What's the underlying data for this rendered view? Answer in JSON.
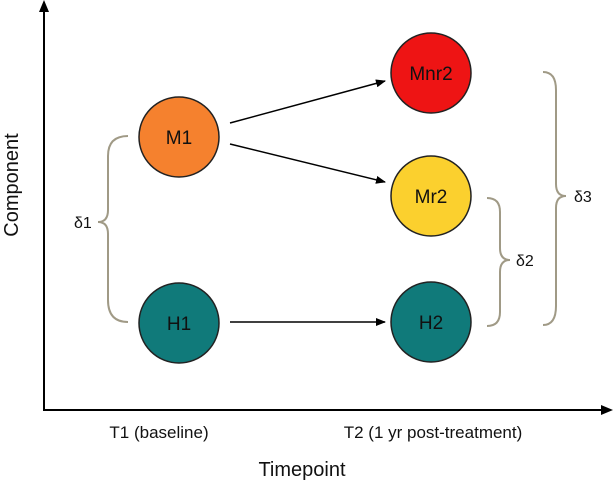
{
  "axes": {
    "y_title": "Component",
    "x_title": "Timepoint",
    "x_ticks": [
      "T1 (baseline)",
      "T2 (1 yr post-treatment)"
    ]
  },
  "nodes": [
    {
      "id": "M1",
      "label": "M1",
      "color": "#F5812E"
    },
    {
      "id": "H1",
      "label": "H1",
      "color": "#107A7A"
    },
    {
      "id": "Mnr2",
      "label": "Mnr2",
      "color": "#EE1414"
    },
    {
      "id": "Mr2",
      "label": "Mr2",
      "color": "#FBD02E"
    },
    {
      "id": "H2",
      "label": "H2",
      "color": "#107A7A"
    }
  ],
  "arrows": [
    {
      "from": "M1",
      "to": "Mnr2"
    },
    {
      "from": "M1",
      "to": "Mr2"
    },
    {
      "from": "H1",
      "to": "H2"
    }
  ],
  "braces": [
    {
      "label": "δ1",
      "spans": [
        "M1",
        "H1"
      ]
    },
    {
      "label": "δ2",
      "spans": [
        "Mr2",
        "H2"
      ]
    },
    {
      "label": "δ3",
      "spans": [
        "Mnr2",
        "H2"
      ]
    }
  ],
  "colors": {
    "brace": "#A09A86",
    "line": "#000000"
  }
}
